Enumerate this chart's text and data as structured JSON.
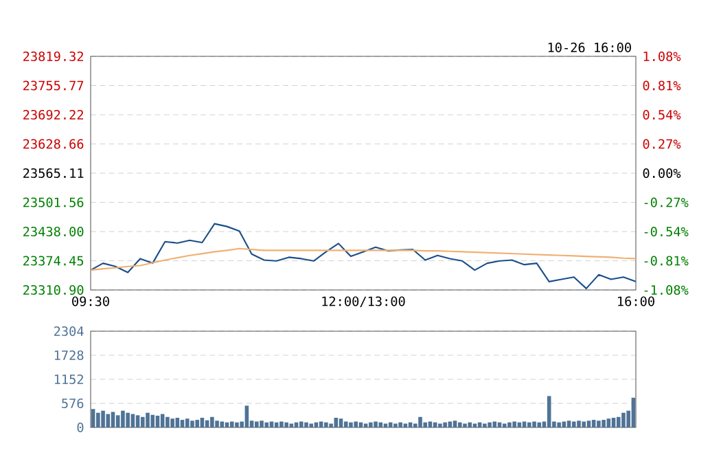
{
  "chart_data": [
    {
      "type": "line",
      "annotations": [
        "10-26 16:00"
      ],
      "grid": "y",
      "categories": [
        "09:30",
        null,
        null,
        null,
        null,
        null,
        null,
        null,
        null,
        null,
        null,
        null,
        null,
        null,
        null,
        null,
        null,
        null,
        null,
        null,
        null,
        null,
        "12:00/13:00",
        null,
        null,
        null,
        null,
        null,
        null,
        null,
        null,
        null,
        null,
        null,
        null,
        null,
        null,
        null,
        null,
        null,
        null,
        null,
        null,
        null,
        "16:00"
      ],
      "series": [
        {
          "color": "#1a4f8b",
          "values": [
            23354,
            23369,
            23362,
            23349,
            23379,
            23369,
            23416,
            23413,
            23419,
            23414,
            23455,
            23449,
            23439,
            23389,
            23376,
            23374,
            23382,
            23379,
            23374,
            23394,
            23412,
            23384,
            23394,
            23404,
            23396,
            23398,
            23399,
            23376,
            23386,
            23379,
            23374,
            23354,
            23369,
            23374,
            23376,
            23366,
            23369,
            23329,
            23334,
            23339,
            23314,
            23344,
            23334,
            23339,
            23329
          ]
        },
        {
          "color": "#f0b070",
          "values": [
            23354,
            23357,
            23359,
            23362,
            23364,
            23370,
            23376,
            23381,
            23386,
            23390,
            23394,
            23397,
            23401,
            23399,
            23397,
            23397,
            23397,
            23397,
            23397,
            23397,
            23397,
            23397,
            23397,
            23397,
            23397,
            23397,
            23397,
            23396,
            23396,
            23395,
            23394,
            23393,
            23392,
            23391,
            23390,
            23389,
            23388,
            23387,
            23386,
            23385,
            23384,
            23383,
            23382,
            23380,
            23379
          ]
        }
      ],
      "ylim": [
        23310.9,
        23819.32
      ],
      "yticks": [
        23819.32,
        23755.77,
        23692.22,
        23628.66,
        23565.11,
        23501.56,
        {
          "value": 23438,
          "label": "23438.00"
        },
        23374.45,
        {
          "value": 23310.9,
          "label": "23310.90"
        }
      ],
      "y2lim": [
        -1.08,
        1.08
      ],
      "y2ticks": [
        {
          "value": 1.08,
          "label": "1.08%"
        },
        {
          "value": 0.81,
          "label": "0.81%"
        },
        {
          "value": 0.54,
          "label": "0.54%"
        },
        {
          "value": 0.27,
          "label": "0.27%"
        },
        {
          "value": 0,
          "label": "0.00%"
        },
        {
          "value": -0.27,
          "label": "-0.27%"
        },
        {
          "value": -0.54,
          "label": "-0.54%"
        },
        {
          "value": -0.81,
          "label": "-0.81%"
        },
        {
          "value": -1.08,
          "label": "-1.08%"
        }
      ]
    },
    {
      "type": "bar",
      "color": "#4f7396",
      "grid": "y",
      "categories": [
        null,
        null,
        null,
        null,
        null,
        null,
        null,
        null,
        null,
        null,
        null,
        null,
        null,
        null,
        null,
        null,
        null,
        null,
        null,
        null,
        null,
        null,
        null,
        null,
        null,
        null,
        null,
        null,
        null,
        null,
        null,
        null,
        null,
        null,
        null,
        null,
        null,
        null,
        null,
        null,
        null,
        null,
        null,
        null,
        null,
        null,
        null,
        null,
        null,
        null,
        null,
        null,
        null,
        null,
        null,
        null,
        null,
        null,
        null,
        null,
        null,
        null,
        null,
        null,
        null,
        null,
        null,
        null,
        null,
        null,
        null,
        null,
        null,
        null,
        null,
        null,
        null,
        null,
        null,
        null,
        null,
        null,
        null,
        null,
        null,
        null,
        null,
        null,
        null,
        null,
        null,
        null,
        null,
        null,
        null,
        null,
        null,
        null,
        null,
        null,
        null,
        null,
        null,
        null,
        null,
        null,
        null,
        null,
        null,
        null
      ],
      "values": [
        440,
        350,
        400,
        320,
        370,
        290,
        400,
        350,
        320,
        290,
        250,
        350,
        300,
        280,
        320,
        250,
        210,
        230,
        180,
        210,
        160,
        180,
        230,
        170,
        250,
        160,
        140,
        120,
        140,
        120,
        140,
        520,
        160,
        140,
        160,
        120,
        140,
        120,
        140,
        120,
        90,
        120,
        140,
        120,
        90,
        120,
        140,
        120,
        90,
        230,
        210,
        140,
        120,
        140,
        120,
        90,
        120,
        140,
        120,
        90,
        120,
        90,
        120,
        90,
        120,
        90,
        250,
        120,
        140,
        120,
        90,
        120,
        140,
        160,
        120,
        90,
        120,
        90,
        120,
        90,
        120,
        140,
        120,
        90,
        120,
        140,
        120,
        140,
        120,
        140,
        120,
        140,
        750,
        140,
        120,
        140,
        160,
        140,
        160,
        140,
        160,
        180,
        160,
        180,
        210,
        230,
        250,
        350,
        400,
        710
      ],
      "ylim": [
        0,
        2304
      ],
      "yticks": [
        0,
        576,
        1152,
        1728,
        2304
      ]
    }
  ]
}
